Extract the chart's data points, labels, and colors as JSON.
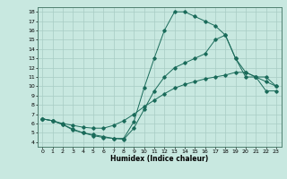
{
  "title": "",
  "xlabel": "Humidex (Indice chaleur)",
  "background_color": "#c8e8e0",
  "grid_color": "#a8ccc4",
  "line_color": "#1a6b5a",
  "xlim": [
    -0.5,
    23.5
  ],
  "ylim": [
    3.5,
    18.5
  ],
  "xticks": [
    0,
    1,
    2,
    3,
    4,
    5,
    6,
    7,
    8,
    9,
    10,
    11,
    12,
    13,
    14,
    15,
    16,
    17,
    18,
    19,
    20,
    21,
    22,
    23
  ],
  "yticks": [
    4,
    5,
    6,
    7,
    8,
    9,
    10,
    11,
    12,
    13,
    14,
    15,
    16,
    17,
    18
  ],
  "curve1_x": [
    0,
    1,
    2,
    3,
    4,
    5,
    6,
    7,
    8,
    9,
    10,
    11,
    12,
    13,
    14,
    15,
    16,
    17,
    18,
    19,
    20,
    21,
    22,
    23
  ],
  "curve1_y": [
    6.5,
    6.3,
    5.9,
    5.3,
    5.0,
    4.7,
    4.5,
    4.4,
    4.4,
    6.2,
    9.8,
    13.0,
    16.0,
    18.0,
    18.0,
    17.5,
    17.0,
    16.5,
    15.5,
    13.0,
    11.0,
    11.0,
    10.5,
    10.0
  ],
  "curve2_x": [
    0,
    1,
    2,
    3,
    4,
    5,
    6,
    7,
    8,
    9,
    10,
    11,
    12,
    13,
    14,
    15,
    16,
    17,
    18,
    19,
    20,
    21,
    22,
    23
  ],
  "curve2_y": [
    6.5,
    6.3,
    5.9,
    5.4,
    5.0,
    4.8,
    4.6,
    4.4,
    4.3,
    5.5,
    7.5,
    9.5,
    11.0,
    12.0,
    12.5,
    13.0,
    13.5,
    15.0,
    15.5,
    13.0,
    11.5,
    11.0,
    11.0,
    10.0
  ],
  "curve3_x": [
    0,
    1,
    2,
    3,
    4,
    5,
    6,
    7,
    8,
    9,
    10,
    11,
    12,
    13,
    14,
    15,
    16,
    17,
    18,
    19,
    20,
    21,
    22,
    23
  ],
  "curve3_y": [
    6.5,
    6.3,
    6.0,
    5.8,
    5.6,
    5.5,
    5.5,
    5.8,
    6.3,
    7.0,
    7.8,
    8.5,
    9.2,
    9.8,
    10.2,
    10.5,
    10.8,
    11.0,
    11.2,
    11.5,
    11.5,
    11.0,
    9.5,
    9.5
  ],
  "tick_fontsize": 4.5,
  "label_fontsize": 5.5
}
